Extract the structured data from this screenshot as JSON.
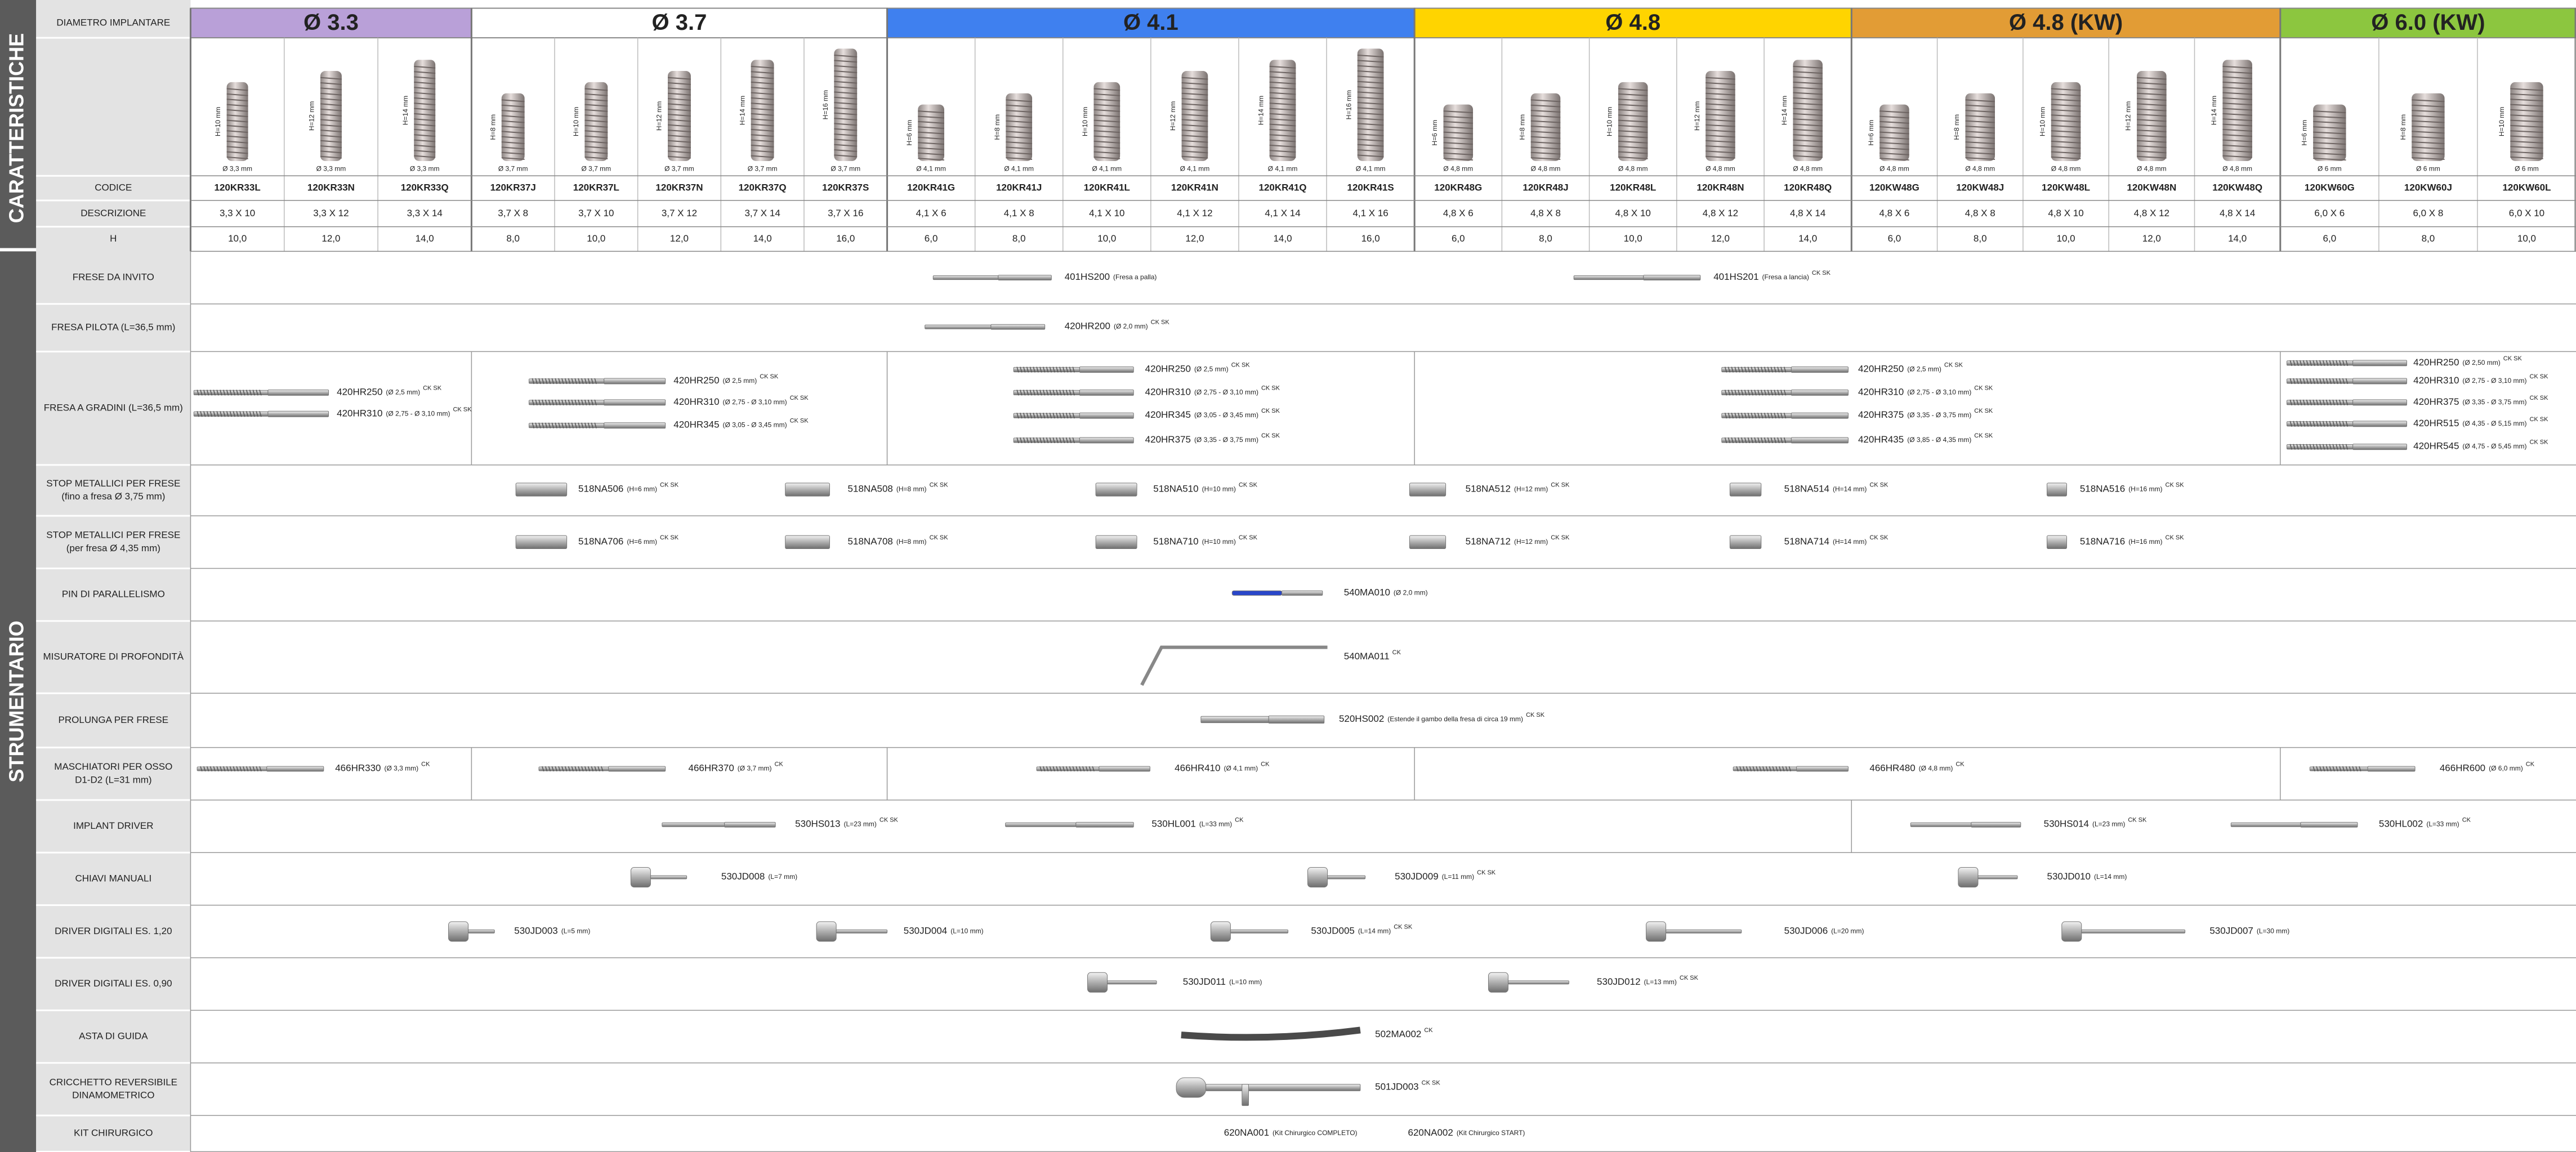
{
  "sidebar": {
    "top": "CARATTERISTICHE",
    "bottom": "STRUMENTARIO"
  },
  "header_label": "DIAMETRO IMPLANTARE",
  "row_labels": [
    "CODICE",
    "DESCRIZIONE",
    "H"
  ],
  "groups": [
    {
      "title": "Ø 3.3",
      "color": "#b9a0d8",
      "diameter_label": "Ø 3,3 mm",
      "implants": [
        {
          "height_label": "H=10 mm",
          "code": "120KR33L",
          "description": "3,3 X 10",
          "h": "10,0"
        },
        {
          "height_label": "H=12 mm",
          "code": "120KR33N",
          "description": "3,3 X 12",
          "h": "12,0"
        },
        {
          "height_label": "H=14 mm",
          "code": "120KR33Q",
          "description": "3,3 X 14",
          "h": "14,0"
        }
      ]
    },
    {
      "title": "Ø 3.7",
      "color": "#ffffff",
      "diameter_label": "Ø 3,7 mm",
      "implants": [
        {
          "height_label": "H=8 mm",
          "code": "120KR37J",
          "description": "3,7 X 8",
          "h": "8,0"
        },
        {
          "height_label": "H=10 mm",
          "code": "120KR37L",
          "description": "3,7 X 10",
          "h": "10,0"
        },
        {
          "height_label": "H=12 mm",
          "code": "120KR37N",
          "description": "3,7 X 12",
          "h": "12,0"
        },
        {
          "height_label": "H=14 mm",
          "code": "120KR37Q",
          "description": "3,7 X 14",
          "h": "14,0"
        },
        {
          "height_label": "H=16 mm",
          "code": "120KR37S",
          "description": "3,7 X 16",
          "h": "16,0"
        }
      ]
    },
    {
      "title": "Ø 4.1",
      "color": "#3f80ef",
      "diameter_label": "Ø 4,1 mm",
      "implants": [
        {
          "height_label": "H=6 mm",
          "code": "120KR41G",
          "description": "4,1 X 6",
          "h": "6,0"
        },
        {
          "height_label": "H=8 mm",
          "code": "120KR41J",
          "description": "4,1 X 8",
          "h": "8,0"
        },
        {
          "height_label": "H=10 mm",
          "code": "120KR41L",
          "description": "4,1 X 10",
          "h": "10,0"
        },
        {
          "height_label": "H=12 mm",
          "code": "120KR41N",
          "description": "4,1 X 12",
          "h": "12,0"
        },
        {
          "height_label": "H=14 mm",
          "code": "120KR41Q",
          "description": "4,1 X 14",
          "h": "14,0"
        },
        {
          "height_label": "H=16 mm",
          "code": "120KR41S",
          "description": "4,1 X 16",
          "h": "16,0"
        }
      ]
    },
    {
      "title": "Ø 4.8",
      "color": "#ffd400",
      "diameter_label": "Ø 4,8 mm",
      "implants": [
        {
          "height_label": "H=6 mm",
          "code": "120KR48G",
          "description": "4,8 X 6",
          "h": "6,0"
        },
        {
          "height_label": "H=8 mm",
          "code": "120KR48J",
          "description": "4,8 X 8",
          "h": "8,0"
        },
        {
          "height_label": "H=10 mm",
          "code": "120KR48L",
          "description": "4,8 X 10",
          "h": "10,0"
        },
        {
          "height_label": "H=12 mm",
          "code": "120KR48N",
          "description": "4,8 X 12",
          "h": "12,0"
        },
        {
          "height_label": "H=14 mm",
          "code": "120KR48Q",
          "description": "4,8 X 14",
          "h": "14,0"
        }
      ]
    },
    {
      "title": "Ø 4.8 (KW)",
      "color": "#e29c35",
      "diameter_label": "Ø 4,8 mm",
      "implants": [
        {
          "height_label": "H=6 mm",
          "code": "120KW48G",
          "description": "4,8 X 6",
          "h": "6,0"
        },
        {
          "height_label": "H=8 mm",
          "code": "120KW48J",
          "description": "4,8 X 8",
          "h": "8,0"
        },
        {
          "height_label": "H=10 mm",
          "code": "120KW48L",
          "description": "4,8 X 10",
          "h": "10,0"
        },
        {
          "height_label": "H=12 mm",
          "code": "120KW48N",
          "description": "4,8 X 12",
          "h": "12,0"
        },
        {
          "height_label": "H=14 mm",
          "code": "120KW48Q",
          "description": "4,8 X 14",
          "h": "14,0"
        }
      ]
    },
    {
      "title": "Ø 6.0 (KW)",
      "color": "#8cc63f",
      "diameter_label": "Ø 6 mm",
      "implants": [
        {
          "height_label": "H=6 mm",
          "code": "120KW60G",
          "description": "6,0 X 6",
          "h": "6,0"
        },
        {
          "height_label": "H=8 mm",
          "code": "120KW60J",
          "description": "6,0 X 8",
          "h": "8,0"
        },
        {
          "height_label": "H=10 mm",
          "code": "120KW60L",
          "description": "6,0 X 10",
          "h": "10,0"
        }
      ]
    }
  ],
  "instrument_rows": [
    {
      "label": [
        "FRESE DA INVITO"
      ],
      "items": [
        {
          "code": "401HS200",
          "note": "(Fresa a palla)"
        },
        {
          "code": "401HS201",
          "note": "(Fresa a lancia)",
          "sup": "CK SK"
        }
      ]
    },
    {
      "label": [
        "FRESA PILOTA (L=36,5 mm)"
      ],
      "items": [
        {
          "code": "420HR200",
          "note": "(Ø 2,0 mm)",
          "sup": "CK SK"
        }
      ]
    },
    {
      "label": [
        "FRESA A GRADINI (L=36,5 mm)"
      ],
      "items": [
        {
          "code": "420HR250",
          "note": "(Ø 2,5 mm)",
          "sup": "CK SK"
        },
        {
          "code": "420HR310",
          "note": "(Ø 2,75 - Ø 3,10 mm)",
          "sup": "CK SK"
        },
        {
          "code": "420HR250",
          "note": "(Ø 2,5 mm)",
          "sup": "CK SK"
        },
        {
          "code": "420HR310",
          "note": "(Ø 2,75 - Ø 3,10 mm)",
          "sup": "CK SK"
        },
        {
          "code": "420HR345",
          "note": "(Ø 3,05 - Ø 3,45 mm)",
          "sup": "CK SK"
        },
        {
          "code": "420HR250",
          "note": "(Ø 2,5 mm)",
          "sup": "CK SK"
        },
        {
          "code": "420HR310",
          "note": "(Ø 2,75 - Ø 3,10 mm)",
          "sup": "CK SK"
        },
        {
          "code": "420HR345",
          "note": "(Ø 3,05 - Ø 3,45 mm)",
          "sup": "CK SK"
        },
        {
          "code": "420HR375",
          "note": "(Ø 3,35 - Ø 3,75 mm)",
          "sup": "CK SK"
        },
        {
          "code": "420HR250",
          "note": "(Ø 2,5 mm)",
          "sup": "CK SK"
        },
        {
          "code": "420HR310",
          "note": "(Ø 2,75 - Ø 3,10 mm)",
          "sup": "CK SK"
        },
        {
          "code": "420HR375",
          "note": "(Ø 3,35 - Ø 3,75 mm)",
          "sup": "CK SK"
        },
        {
          "code": "420HR435",
          "note": "(Ø 3,85 - Ø 4,35 mm)",
          "sup": "CK SK"
        },
        {
          "code": "420HR250",
          "note": "(Ø 2,50 mm)",
          "sup": "CK SK"
        },
        {
          "code": "420HR310",
          "note": "(Ø 2,75 - Ø 3,10 mm)",
          "sup": "CK SK"
        },
        {
          "code": "420HR375",
          "note": "(Ø 3,35 - Ø 3,75 mm)",
          "sup": "CK SK"
        },
        {
          "code": "420HR515",
          "note": "(Ø 4,35 - Ø 5,15 mm)",
          "sup": "CK SK"
        },
        {
          "code": "420HR545",
          "note": "(Ø 4,75 - Ø 5,45 mm)",
          "sup": "CK SK"
        }
      ]
    },
    {
      "label": [
        "STOP METALLICI PER FRESE",
        "(fino a fresa Ø 3,75 mm)"
      ],
      "items": [
        {
          "code": "518NA506",
          "note": "(H=6 mm)",
          "sup": "CK SK"
        },
        {
          "code": "518NA508",
          "note": "(H=8 mm)",
          "sup": "CK SK"
        },
        {
          "code": "518NA510",
          "note": "(H=10 mm)",
          "sup": "CK SK"
        },
        {
          "code": "518NA512",
          "note": "(H=12 mm)",
          "sup": "CK SK"
        },
        {
          "code": "518NA514",
          "note": "(H=14 mm)",
          "sup": "CK SK"
        },
        {
          "code": "518NA516",
          "note": "(H=16 mm)",
          "sup": "CK SK"
        }
      ]
    },
    {
      "label": [
        "STOP METALLICI PER FRESE",
        "(per fresa Ø 4,35 mm)"
      ],
      "items": [
        {
          "code": "518NA706",
          "note": "(H=6 mm)",
          "sup": "CK SK"
        },
        {
          "code": "518NA708",
          "note": "(H=8 mm)",
          "sup": "CK SK"
        },
        {
          "code": "518NA710",
          "note": "(H=10 mm)",
          "sup": "CK SK"
        },
        {
          "code": "518NA712",
          "note": "(H=12 mm)",
          "sup": "CK SK"
        },
        {
          "code": "518NA714",
          "note": "(H=14 mm)",
          "sup": "CK SK"
        },
        {
          "code": "518NA716",
          "note": "(H=16 mm)",
          "sup": "CK SK"
        }
      ]
    },
    {
      "label": [
        "PIN DI PARALLELISMO"
      ],
      "items": [
        {
          "code": "540MA010",
          "note": "(Ø 2,0 mm)"
        }
      ]
    },
    {
      "label": [
        "MISURATORE DI PROFONDITÀ"
      ],
      "items": [
        {
          "code": "540MA011",
          "sup": "CK"
        }
      ]
    },
    {
      "label": [
        "PROLUNGA PER FRESE"
      ],
      "items": [
        {
          "code": "520HS002",
          "note": "(Estende il gambo della fresa di circa 19 mm)",
          "sup": "CK SK"
        }
      ]
    },
    {
      "label": [
        "MASCHIATORI PER OSSO",
        "D1-D2 (L=31 mm)"
      ],
      "items": [
        {
          "code": "466HR330",
          "note": "(Ø 3,3 mm)",
          "sup": "CK"
        },
        {
          "code": "466HR370",
          "note": "(Ø 3,7 mm)",
          "sup": "CK"
        },
        {
          "code": "466HR410",
          "note": "(Ø 4,1 mm)",
          "sup": "CK"
        },
        {
          "code": "466HR480",
          "note": "(Ø 4,8 mm)",
          "sup": "CK"
        },
        {
          "code": "466HR600",
          "note": "(Ø 6,0 mm)",
          "sup": "CK"
        }
      ]
    },
    {
      "label": [
        "IMPLANT DRIVER"
      ],
      "items": [
        {
          "code": "530HS013",
          "note": "(L=23 mm)",
          "sup": "CK SK"
        },
        {
          "code": "530HL001",
          "note": "(L=33 mm)",
          "sup": "CK"
        },
        {
          "code": "530HS014",
          "note": "(L=23 mm)",
          "sup": "CK SK"
        },
        {
          "code": "530HL002",
          "note": "(L=33 mm)",
          "sup": "CK"
        }
      ]
    },
    {
      "label": [
        "CHIAVI MANUALI"
      ],
      "items": [
        {
          "code": "530JD008",
          "note": "(L=7 mm)"
        },
        {
          "code": "530JD009",
          "note": "(L=11 mm)",
          "sup": "CK SK"
        },
        {
          "code": "530JD010",
          "note": "(L=14 mm)"
        }
      ]
    },
    {
      "label": [
        "DRIVER DIGITALI ES. 1,20"
      ],
      "items": [
        {
          "code": "530JD003",
          "note": "(L=5 mm)"
        },
        {
          "code": "530JD004",
          "note": "(L=10 mm)"
        },
        {
          "code": "530JD005",
          "note": "(L=14 mm)",
          "sup": "CK SK"
        },
        {
          "code": "530JD006",
          "note": "(L=20 mm)"
        },
        {
          "code": "530JD007",
          "note": "(L=30 mm)"
        }
      ]
    },
    {
      "label": [
        "DRIVER DIGITALI ES. 0,90"
      ],
      "items": [
        {
          "code": "530JD011",
          "note": "(L=10 mm)"
        },
        {
          "code": "530JD012",
          "note": "(L=13 mm)",
          "sup": "CK SK"
        }
      ]
    },
    {
      "label": [
        "ASTA DI GUIDA"
      ],
      "items": [
        {
          "code": "502MA002",
          "sup": "CK"
        }
      ]
    },
    {
      "label": [
        "CRICCHETTO REVERSIBILE",
        "DINAMOMETRICO"
      ],
      "items": [
        {
          "code": "501JD003",
          "sup": "CK SK"
        }
      ]
    },
    {
      "label": [
        "KIT CHIRURGICO"
      ],
      "items": [
        {
          "code": "620NA001",
          "note": "(Kit Chirurgico COMPLETO)"
        },
        {
          "code": "620NA002",
          "note": "(Kit Chirurgico START)"
        }
      ]
    }
  ]
}
